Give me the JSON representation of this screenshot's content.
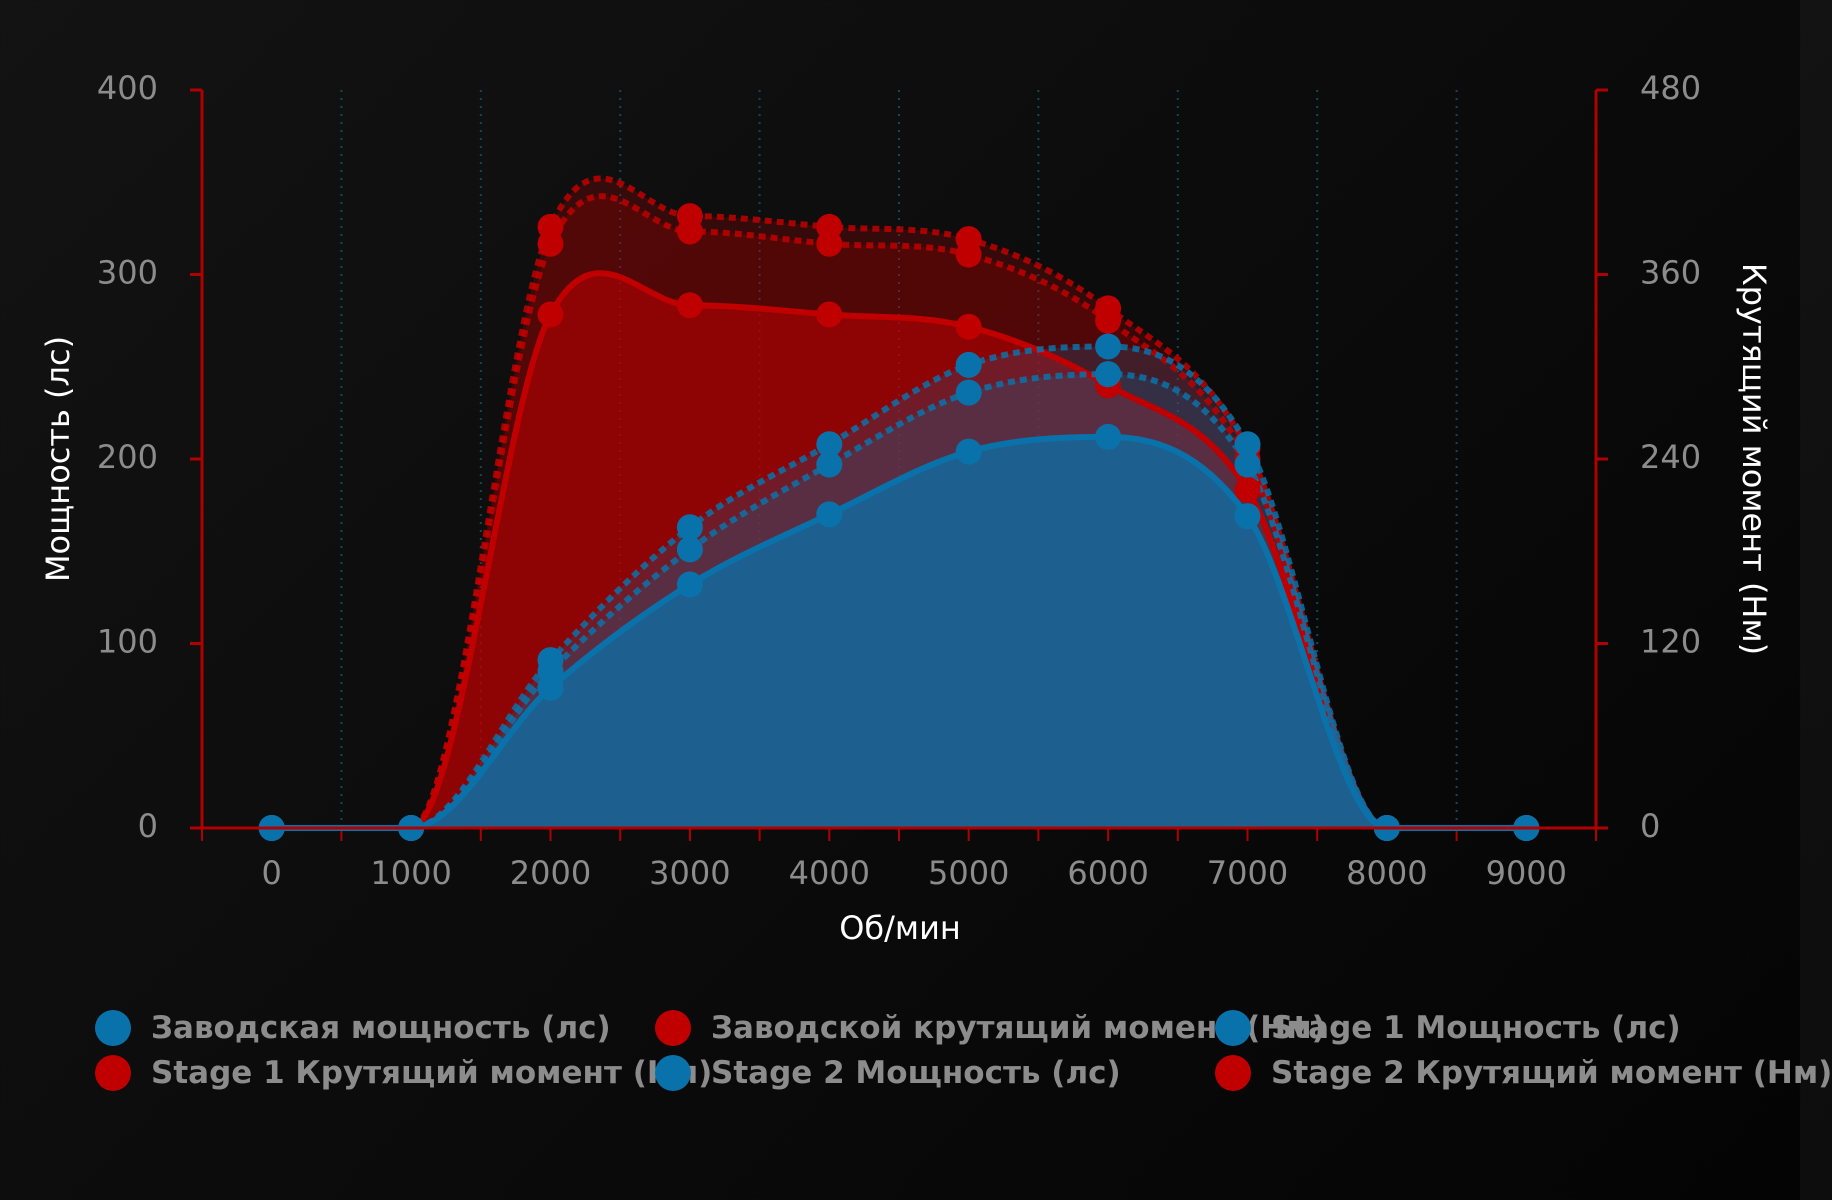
{
  "chart_data": {
    "type": "line",
    "x_label": "Об/мин",
    "y_label": "Мощность (лс)",
    "y2_label": "Крутящий момент (Нм)",
    "x": [
      0,
      1000,
      2000,
      3000,
      4000,
      5000,
      6000,
      7000,
      8000,
      9000
    ],
    "xlim": [
      -500,
      9500
    ],
    "xticks": [
      0,
      1000,
      2000,
      3000,
      4000,
      5000,
      6000,
      7000,
      8000,
      9000
    ],
    "ylim": [
      0,
      400
    ],
    "yticks": [
      0,
      100,
      200,
      300,
      400
    ],
    "y2lim": [
      0,
      480
    ],
    "y2ticks": [
      0,
      120,
      240,
      360,
      480
    ],
    "grid": true,
    "series": [
      {
        "name": "Заводская мощность (лс)",
        "color": "#0a72aa",
        "line_style": "solid",
        "axis": "y",
        "values": [
          0,
          0,
          76,
          132,
          170,
          204,
          212,
          169,
          0,
          0
        ]
      },
      {
        "name": "Заводской крутящий момент (Нм)",
        "color": "#c00000",
        "line_style": "solid",
        "axis": "y2",
        "values": [
          0,
          0,
          334,
          340,
          334,
          326,
          288,
          220,
          0,
          0
        ]
      },
      {
        "name": "Stage 1 Мощность (лс)",
        "color": "#0a72aa",
        "line_style": "dotted",
        "axis": "y",
        "values": [
          0,
          0,
          85,
          151,
          197,
          236,
          246,
          197,
          0,
          0
        ]
      },
      {
        "name": "Stage 1 Крутящий момент (Нм)",
        "color": "#c00000",
        "line_style": "dotted",
        "axis": "y2",
        "values": [
          0,
          0,
          380,
          388,
          380,
          373,
          330,
          240,
          0,
          0
        ]
      },
      {
        "name": "Stage 2 Мощность (лс)",
        "color": "#0a72aa",
        "line_style": "dotted",
        "axis": "y",
        "values": [
          0,
          0,
          91,
          163,
          208,
          251,
          261,
          208,
          0,
          0
        ]
      },
      {
        "name": "Stage 2 Крутящий момент (Нм)",
        "color": "#c00000",
        "line_style": "dotted",
        "axis": "y2",
        "values": [
          0,
          0,
          391,
          398,
          391,
          383,
          338,
          247,
          0,
          0
        ]
      }
    ]
  }
}
